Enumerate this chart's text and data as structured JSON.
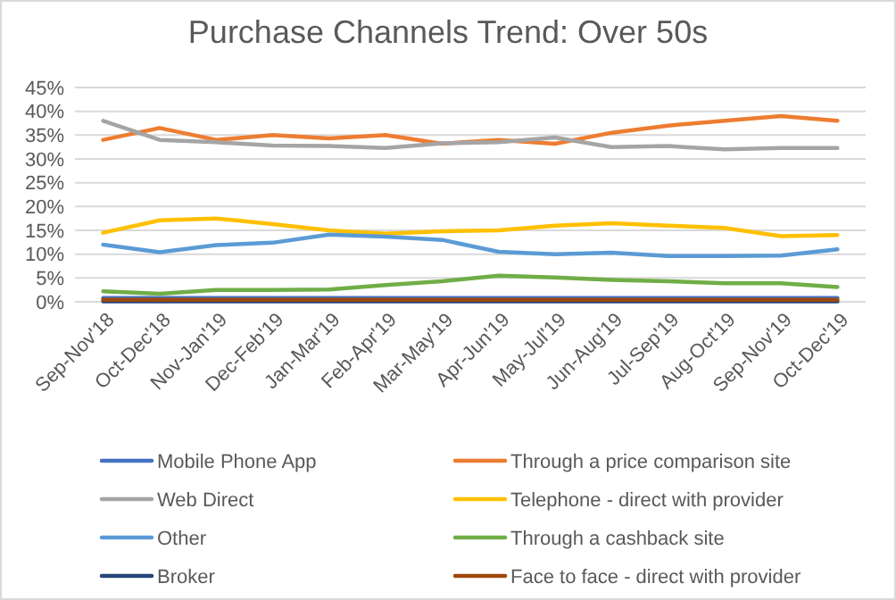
{
  "chart_data": {
    "type": "line",
    "title": "Purchase Channels Trend: Over 50s",
    "categories": [
      "Sep-Nov'18",
      "Oct-Dec'18",
      "Nov-Jan'19",
      "Dec-Feb'19",
      "Jan-Mar'19",
      "Feb-Apr'19",
      "Mar-May'19",
      "Apr-Jun'19",
      "May-Jul'19",
      "Jun-Aug'19",
      "Jul-Sep'19",
      "Aug-Oct'19",
      "Sep-Nov'19",
      "Oct-Dec'19"
    ],
    "series": [
      {
        "name": "Mobile Phone App",
        "color": "#4472c4",
        "values": [
          0.8,
          0.8,
          0.8,
          0.8,
          0.8,
          0.8,
          0.8,
          0.8,
          0.8,
          0.8,
          0.8,
          0.8,
          0.8,
          0.8
        ]
      },
      {
        "name": "Through a price comparison site",
        "color": "#ed7d31",
        "values": [
          34,
          36.5,
          34,
          35,
          34.3,
          35,
          33.2,
          34,
          33.2,
          35.5,
          37,
          38,
          39,
          38
        ]
      },
      {
        "name": "Web Direct",
        "color": "#a5a5a5",
        "values": [
          38,
          34,
          33.5,
          32.8,
          32.7,
          32.3,
          33.3,
          33.5,
          34.5,
          32.5,
          32.7,
          32,
          32.3,
          32.3
        ]
      },
      {
        "name": "Telephone - direct with provider",
        "color": "#ffc000",
        "values": [
          14.5,
          17.1,
          17.5,
          16.3,
          15,
          14.3,
          14.8,
          15,
          16,
          16.5,
          16,
          15.5,
          13.8,
          14
        ]
      },
      {
        "name": "Other",
        "color": "#5b9bd5",
        "values": [
          12,
          10.4,
          11.9,
          12.4,
          14.1,
          13.7,
          13,
          10.5,
          10,
          10.3,
          9.6,
          9.6,
          9.7,
          11
        ]
      },
      {
        "name": "Through a cashback site",
        "color": "#70ad47",
        "values": [
          2.2,
          1.7,
          2.5,
          2.5,
          2.6,
          3.5,
          4.3,
          5.5,
          5.1,
          4.6,
          4.3,
          3.9,
          3.9,
          3.1
        ]
      },
      {
        "name": "Broker",
        "color": "#264478",
        "values": [
          0.1,
          0.1,
          0.1,
          0.1,
          0.1,
          0.1,
          0.1,
          0.1,
          0.1,
          0.1,
          0.1,
          0.1,
          0.1,
          0.1
        ]
      },
      {
        "name": "Face to face - direct with provider",
        "color": "#9e480e",
        "values": [
          0.4,
          0.4,
          0.4,
          0.4,
          0.4,
          0.4,
          0.4,
          0.4,
          0.4,
          0.4,
          0.4,
          0.4,
          0.4,
          0.4
        ]
      }
    ],
    "ylim": [
      0,
      45
    ],
    "yticks": [
      {
        "value": 0,
        "label": "0%"
      },
      {
        "value": 5,
        "label": "5%"
      },
      {
        "value": 10,
        "label": "10%"
      },
      {
        "value": 15,
        "label": "15%"
      },
      {
        "value": 20,
        "label": "20%"
      },
      {
        "value": 25,
        "label": "25%"
      },
      {
        "value": 30,
        "label": "30%"
      },
      {
        "value": 35,
        "label": "35%"
      },
      {
        "value": 40,
        "label": "40%"
      },
      {
        "value": 45,
        "label": "45%"
      }
    ],
    "grid": "y",
    "legend": "bottom",
    "marker": "none",
    "line_style": "solid"
  }
}
